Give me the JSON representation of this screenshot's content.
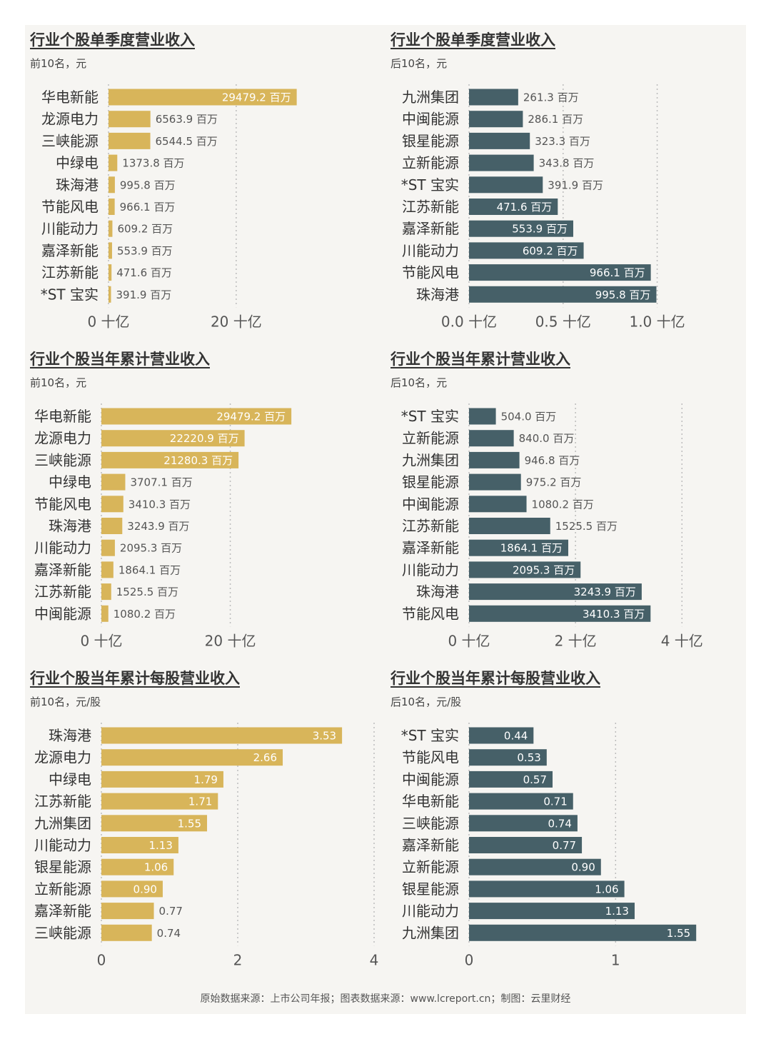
{
  "colors": {
    "gold": "#d8b55a",
    "slate": "#466068",
    "grid": "#bcbcbc",
    "label": "#333333",
    "value": "#555555",
    "inside": "#ffffff"
  },
  "footer": "原始数据来源：上市公司年报；图表数据来源：www.lcreport.cn；制图：云里财经",
  "chart_data": [
    {
      "type": "bar",
      "orientation": "horizontal",
      "title": "行业个股单季度营业收入",
      "subtitle": "前10名，元",
      "categories": [
        "华电新能",
        "龙源电力",
        "三峡能源",
        "中绿电",
        "珠海港",
        "节能风电",
        "川能动力",
        "嘉泽新能",
        "江苏新能",
        "*ST 宝实"
      ],
      "values": [
        29479.2,
        6563.9,
        6544.5,
        1373.8,
        995.8,
        966.1,
        609.2,
        553.9,
        471.6,
        391.9
      ],
      "value_labels": [
        "29479.2 百万",
        "6563.9 百万",
        "6544.5 百万",
        "1373.8 百万",
        "995.8 百万",
        "966.1 百万",
        "609.2 百万",
        "553.9 百万",
        "471.6 百万",
        "391.9 百万"
      ],
      "xlim": [
        0,
        35000
      ],
      "ticks": [
        0,
        20000
      ],
      "tick_labels": [
        "0 十亿",
        "20 十亿"
      ],
      "color": "#d8b55a",
      "grid": true
    },
    {
      "type": "bar",
      "orientation": "horizontal",
      "title": "行业个股单季度营业收入",
      "subtitle": "后10名，元",
      "categories": [
        "九洲集团",
        "中闽能源",
        "银星能源",
        "立新能源",
        "*ST 宝实",
        "江苏新能",
        "嘉泽新能",
        "川能动力",
        "节能风电",
        "珠海港"
      ],
      "values": [
        261.3,
        286.1,
        323.3,
        343.8,
        391.9,
        471.6,
        553.9,
        609.2,
        966.1,
        995.8
      ],
      "value_labels": [
        "261.3 百万",
        "286.1 百万",
        "323.3 百万",
        "343.8 百万",
        "391.9 百万",
        "471.6 百万",
        "553.9 百万",
        "609.2 百万",
        "966.1 百万",
        "995.8 百万"
      ],
      "xlim": [
        0,
        1180
      ],
      "ticks": [
        0,
        500,
        1000
      ],
      "tick_labels": [
        "0.0 十亿",
        "0.5 十亿",
        "1.0 十亿"
      ],
      "color": "#466068",
      "grid": true
    },
    {
      "type": "bar",
      "orientation": "horizontal",
      "title": "行业个股当年累计营业收入",
      "subtitle": "前10名，元",
      "categories": [
        "华电新能",
        "龙源电力",
        "三峡能源",
        "中绿电",
        "节能风电",
        "珠海港",
        "川能动力",
        "嘉泽新能",
        "江苏新能",
        "中闽能源"
      ],
      "values": [
        29479.2,
        22220.9,
        21280.3,
        3707.1,
        3410.3,
        3243.9,
        2095.3,
        1864.1,
        1525.5,
        1080.2
      ],
      "value_labels": [
        "29479.2 百万",
        "22220.9 百万",
        "21280.3 百万",
        "3707.1 百万",
        "3410.3 百万",
        "3243.9 百万",
        "2095.3 百万",
        "1864.1 百万",
        "1525.5 百万",
        "1080.2 百万"
      ],
      "xlim": [
        0,
        36000
      ],
      "ticks": [
        0,
        20000
      ],
      "tick_labels": [
        "0 十亿",
        "20 十亿"
      ],
      "color": "#d8b55a",
      "grid": true
    },
    {
      "type": "bar",
      "orientation": "horizontal",
      "title": "行业个股当年累计营业收入",
      "subtitle": "后10名，元",
      "categories": [
        "*ST 宝实",
        "立新能源",
        "九洲集团",
        "银星能源",
        "中闽能源",
        "江苏新能",
        "嘉泽新能",
        "川能动力",
        "珠海港",
        "节能风电"
      ],
      "values": [
        504.0,
        840.0,
        946.8,
        975.2,
        1080.2,
        1525.5,
        1864.1,
        2095.3,
        3243.9,
        3410.3
      ],
      "value_labels": [
        "504.0 百万",
        "840.0 百万",
        "946.8 百万",
        "975.2 百万",
        "1080.2 百万",
        "1525.5 百万",
        "1864.1 百万",
        "2095.3 百万",
        "3243.9 百万",
        "3410.3 百万"
      ],
      "xlim": [
        0,
        4600
      ],
      "ticks": [
        0,
        2000,
        4000
      ],
      "tick_labels": [
        "0 十亿",
        "2 十亿",
        "4 十亿"
      ],
      "color": "#466068",
      "grid": true
    },
    {
      "type": "bar",
      "orientation": "horizontal",
      "title": "行业个股当年累计每股营业收入",
      "subtitle": "前10名，元/股",
      "categories": [
        "珠海港",
        "龙源电力",
        "中绿电",
        "江苏新能",
        "九洲集团",
        "川能动力",
        "银星能源",
        "立新能源",
        "嘉泽新能",
        "三峡能源"
      ],
      "values": [
        3.53,
        2.66,
        1.79,
        1.71,
        1.55,
        1.13,
        1.06,
        0.9,
        0.77,
        0.74
      ],
      "value_labels": [
        "3.53",
        "2.66",
        "1.79",
        "1.71",
        "1.55",
        "1.13",
        "1.06",
        "0.90",
        "0.77",
        "0.74"
      ],
      "xlim": [
        0,
        4
      ],
      "ticks": [
        0,
        2,
        4
      ],
      "tick_labels": [
        "0",
        "2",
        "4"
      ],
      "color": "#d8b55a",
      "grid": true
    },
    {
      "type": "bar",
      "orientation": "horizontal",
      "title": "行业个股当年累计每股营业收入",
      "subtitle": "后10名，元/股",
      "categories": [
        "*ST 宝实",
        "节能风电",
        "中闽能源",
        "华电新能",
        "三峡能源",
        "嘉泽新能",
        "立新能源",
        "银星能源",
        "川能动力",
        "九洲集团"
      ],
      "values": [
        0.44,
        0.53,
        0.57,
        0.71,
        0.74,
        0.77,
        0.9,
        1.06,
        1.13,
        1.55
      ],
      "value_labels": [
        "0.44",
        "0.53",
        "0.57",
        "0.71",
        "0.74",
        "0.77",
        "0.90",
        "1.06",
        "1.13",
        "1.55"
      ],
      "xlim": [
        0,
        1.7
      ],
      "ticks": [
        0,
        1
      ],
      "tick_labels": [
        "0",
        "1"
      ],
      "color": "#466068",
      "grid": true
    }
  ]
}
